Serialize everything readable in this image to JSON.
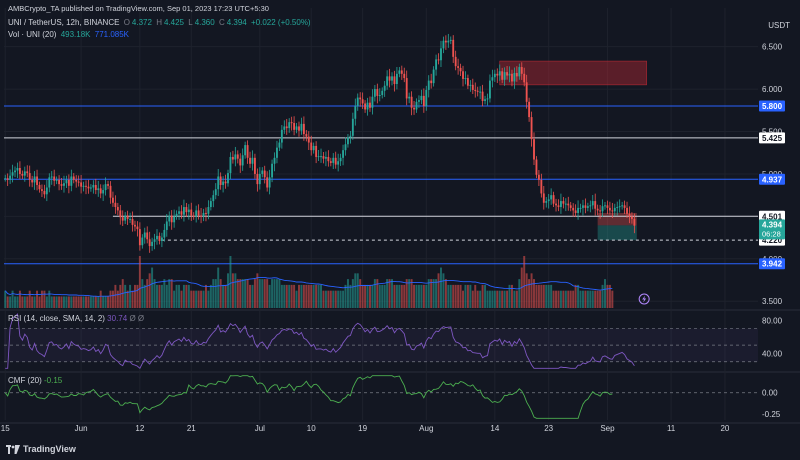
{
  "header": {
    "published": "AMBCrypto_TA published on TradingView.com, Sep 01, 2023 17:23 UTC+5:30"
  },
  "legend": {
    "symbol": "UNI / TetherUS, 12h, BINANCE",
    "o_label": "O",
    "o_value": "4.372",
    "h_label": "H",
    "h_value": "4.425",
    "l_label": "L",
    "l_value": "4.360",
    "c_label": "C",
    "c_value": "4.394",
    "change": "+0.022 (+0.50%)",
    "vol_label": "Vol · UNI (20)",
    "vol_value": "493.18K",
    "vol_ma": "771.085K"
  },
  "currency": "USDT",
  "rsi": {
    "label": "RSI (14, close, SMA, 14, 2)",
    "value": "30.74",
    "extra": "Ø Ø"
  },
  "cmf": {
    "label": "CMF (20)",
    "value": "-0.15"
  },
  "brand": "TradingView",
  "colors": {
    "bg": "#131722",
    "up": "#26a69a",
    "down": "#ef5350",
    "blue_line": "#2962ff",
    "white_line": "#d1d4dc",
    "rsi": "#7e57c2",
    "cmf": "#4caf50",
    "grid": "#1e222d",
    "text": "#d1d4dc",
    "muted": "#787b86"
  },
  "chart_data": [
    {
      "type": "candlestick",
      "title": "UNI / TetherUS, 12h, BINANCE",
      "ylim": [
        3.42,
        6.72
      ],
      "y_ticks": [
        "6.500",
        "6.000",
        "5.500",
        "5.000",
        "4.500",
        "4.000",
        "3.500"
      ],
      "x_ticks": [
        "15",
        "Jun",
        "12",
        "21",
        "Jul",
        "10",
        "19",
        "Aug",
        "14",
        "23",
        "Sep",
        "11",
        "20"
      ],
      "x_tick_index": [
        0,
        31,
        55,
        76,
        104,
        125,
        146,
        172,
        200,
        222,
        246,
        272,
        294
      ],
      "hlines": [
        {
          "value": 5.8,
          "label": "5.800",
          "color": "blue"
        },
        {
          "value": 5.425,
          "label": "5.425",
          "color": "white"
        },
        {
          "value": 4.937,
          "label": "4.937",
          "color": "blue"
        },
        {
          "value": 4.501,
          "label": "4.501",
          "color": "white",
          "start_index": 44
        },
        {
          "value": 4.22,
          "label": "4.220",
          "color": "dashed",
          "start_index": 64
        },
        {
          "value": 3.942,
          "label": "3.942",
          "color": "blue"
        }
      ],
      "last_price": {
        "value": "4.394",
        "countdown": "06:28"
      },
      "supply_zone": {
        "from_index": 202,
        "to_index": 262,
        "low": 6.05,
        "high": 6.33
      },
      "position": {
        "from_index": 242,
        "to_index": 258,
        "entry": 4.394,
        "stop": 4.54,
        "target": 4.22
      },
      "closes": [
        4.95,
        4.93,
        4.98,
        5.02,
        5.04,
        5.07,
        5.0,
        4.98,
        5.03,
        5.01,
        4.93,
        4.9,
        4.97,
        4.87,
        4.82,
        4.8,
        4.76,
        4.84,
        4.96,
        4.97,
        4.92,
        4.93,
        4.88,
        4.86,
        4.89,
        4.93,
        4.86,
        4.97,
        4.93,
        4.91,
        4.9,
        4.85,
        4.86,
        4.85,
        4.83,
        4.84,
        4.87,
        4.81,
        4.83,
        4.77,
        4.81,
        4.88,
        4.86,
        4.72,
        4.66,
        4.61,
        4.57,
        4.49,
        4.45,
        4.51,
        4.47,
        4.47,
        4.4,
        4.38,
        4.35,
        4.16,
        4.25,
        4.31,
        4.23,
        4.15,
        4.2,
        4.23,
        4.27,
        4.21,
        4.25,
        4.34,
        4.44,
        4.51,
        4.43,
        4.5,
        4.53,
        4.56,
        4.52,
        4.61,
        4.55,
        4.58,
        4.51,
        4.5,
        4.57,
        4.51,
        4.5,
        4.54,
        4.53,
        4.61,
        4.68,
        4.75,
        4.82,
        4.97,
        4.87,
        4.91,
        4.89,
        5.01,
        5.2,
        5.17,
        5.23,
        5.18,
        5.1,
        5.22,
        5.34,
        5.19,
        5.12,
        5.19,
        5.0,
        4.88,
        5.0,
        5.04,
        4.96,
        4.84,
        4.96,
        5.12,
        5.19,
        5.31,
        5.37,
        5.52,
        5.56,
        5.54,
        5.61,
        5.6,
        5.52,
        5.56,
        5.51,
        5.59,
        5.47,
        5.44,
        5.37,
        5.28,
        5.33,
        5.2,
        5.21,
        5.21,
        5.18,
        5.2,
        5.15,
        5.13,
        5.19,
        5.11,
        5.15,
        5.19,
        5.28,
        5.35,
        5.43,
        5.45,
        5.65,
        5.8,
        5.9,
        5.88,
        5.83,
        5.76,
        5.84,
        5.78,
        5.91,
        6.0,
        5.92,
        5.93,
        5.98,
        6.04,
        6.15,
        6.1,
        6.15,
        6.06,
        6.18,
        6.22,
        6.18,
        6.13,
        5.89,
        5.91,
        5.78,
        5.76,
        5.85,
        5.87,
        5.92,
        5.8,
        5.99,
        6.1,
        6.07,
        6.23,
        6.35,
        6.34,
        6.48,
        6.57,
        6.55,
        6.57,
        6.58,
        6.38,
        6.27,
        6.25,
        6.21,
        6.12,
        6.13,
        6.04,
        6.05,
        5.99,
        5.98,
        5.97,
        5.97,
        5.86,
        5.88,
        5.89,
        6.1,
        6.14,
        6.18,
        6.16,
        6.21,
        6.11,
        6.2,
        6.16,
        6.18,
        6.09,
        6.19,
        6.15,
        6.26,
        6.18,
        6.08,
        5.85,
        5.67,
        5.41,
        5.17,
        4.99,
        4.93,
        4.77,
        4.66,
        4.68,
        4.7,
        4.75,
        4.65,
        4.63,
        4.61,
        4.68,
        4.65,
        4.65,
        4.63,
        4.6,
        4.57,
        4.54,
        4.6,
        4.6,
        4.63,
        4.6,
        4.62,
        4.63,
        4.68,
        4.59,
        4.57,
        4.56,
        4.62,
        4.63,
        4.6,
        4.57,
        4.56,
        4.6,
        4.61,
        4.62,
        4.63,
        4.6,
        4.53,
        4.5,
        4.47,
        4.39
      ],
      "opens": [
        4.95,
        4.95,
        4.93,
        4.98,
        5.02,
        5.04,
        5.07,
        5.0,
        4.98,
        5.03,
        5.01,
        4.93,
        4.9,
        4.97,
        4.87,
        4.82,
        4.8,
        4.76,
        4.84,
        4.96,
        4.97,
        4.92,
        4.93,
        4.88,
        4.86,
        4.89,
        4.93,
        4.86,
        4.97,
        4.93,
        4.91,
        4.9,
        4.85,
        4.86,
        4.85,
        4.83,
        4.84,
        4.87,
        4.81,
        4.83,
        4.77,
        4.81,
        4.88,
        4.86,
        4.72,
        4.66,
        4.61,
        4.57,
        4.49,
        4.45,
        4.51,
        4.47,
        4.47,
        4.4,
        4.38,
        4.35,
        4.16,
        4.25,
        4.31,
        4.23,
        4.15,
        4.2,
        4.23,
        4.27,
        4.21,
        4.25,
        4.34,
        4.44,
        4.51,
        4.43,
        4.5,
        4.53,
        4.56,
        4.52,
        4.61,
        4.55,
        4.58,
        4.51,
        4.5,
        4.57,
        4.51,
        4.5,
        4.54,
        4.53,
        4.61,
        4.68,
        4.75,
        4.82,
        4.97,
        4.87,
        4.91,
        4.89,
        5.01,
        5.2,
        5.17,
        5.23,
        5.18,
        5.1,
        5.22,
        5.34,
        5.19,
        5.12,
        5.19,
        5.0,
        4.88,
        5.0,
        5.04,
        4.96,
        4.84,
        4.96,
        5.12,
        5.19,
        5.31,
        5.37,
        5.52,
        5.56,
        5.54,
        5.61,
        5.6,
        5.52,
        5.56,
        5.51,
        5.59,
        5.47,
        5.44,
        5.37,
        5.28,
        5.33,
        5.2,
        5.21,
        5.21,
        5.18,
        5.2,
        5.15,
        5.13,
        5.19,
        5.11,
        5.15,
        5.19,
        5.28,
        5.35,
        5.43,
        5.45,
        5.65,
        5.8,
        5.9,
        5.88,
        5.83,
        5.76,
        5.84,
        5.78,
        5.91,
        6.0,
        5.92,
        5.93,
        5.98,
        6.04,
        6.15,
        6.1,
        6.15,
        6.06,
        6.18,
        6.22,
        6.18,
        6.13,
        5.89,
        5.91,
        5.78,
        5.76,
        5.85,
        5.87,
        5.92,
        5.8,
        5.99,
        6.1,
        6.07,
        6.23,
        6.35,
        6.34,
        6.48,
        6.57,
        6.55,
        6.57,
        6.58,
        6.38,
        6.27,
        6.25,
        6.21,
        6.12,
        6.13,
        6.04,
        6.05,
        5.99,
        5.98,
        5.97,
        5.97,
        5.86,
        5.88,
        5.89,
        6.1,
        6.14,
        6.18,
        6.16,
        6.21,
        6.11,
        6.2,
        6.16,
        6.18,
        6.09,
        6.19,
        6.15,
        6.26,
        6.18,
        6.08,
        5.85,
        5.67,
        5.41,
        5.17,
        4.99,
        4.93,
        4.77,
        4.66,
        4.68,
        4.7,
        4.75,
        4.65,
        4.63,
        4.61,
        4.68,
        4.65,
        4.65,
        4.63,
        4.6,
        4.57,
        4.54,
        4.6,
        4.6,
        4.63,
        4.6,
        4.62,
        4.63,
        4.68,
        4.59,
        4.57,
        4.56,
        4.62,
        4.63,
        4.6,
        4.57,
        4.56,
        4.6,
        4.61,
        4.62,
        4.63,
        4.6,
        4.53,
        4.5,
        4.47
      ],
      "volumes": [
        3,
        2,
        2,
        3,
        2,
        2,
        3,
        2,
        2,
        2,
        3,
        2,
        2,
        3,
        2,
        3,
        3,
        2,
        3,
        2,
        2,
        2,
        2,
        2,
        2,
        2,
        2,
        2,
        2,
        2,
        2,
        2,
        2,
        2,
        2,
        2,
        2,
        2,
        2,
        3,
        2,
        2,
        2,
        3,
        3,
        4,
        3,
        4,
        5,
        4,
        3,
        4,
        3,
        4,
        4,
        9,
        5,
        4,
        5,
        6,
        7,
        5,
        4,
        4,
        4,
        5,
        4,
        5,
        5,
        3,
        4,
        4,
        3,
        4,
        4,
        4,
        3,
        3,
        3,
        3,
        3,
        3,
        4,
        3,
        4,
        5,
        5,
        7,
        5,
        4,
        4,
        6,
        9,
        6,
        6,
        5,
        5,
        5,
        5,
        5,
        4,
        4,
        5,
        6,
        5,
        5,
        5,
        5,
        4,
        5,
        5,
        5,
        5,
        4,
        4,
        4,
        4,
        4,
        4,
        3,
        4,
        4,
        4,
        4,
        4,
        4,
        4,
        4,
        4,
        4,
        3,
        3,
        3,
        3,
        3,
        3,
        3,
        3,
        3,
        4,
        5,
        4,
        5,
        6,
        6,
        5,
        4,
        4,
        4,
        4,
        4,
        5,
        5,
        4,
        4,
        4,
        5,
        5,
        5,
        4,
        4,
        4,
        4,
        4,
        5,
        5,
        5,
        4,
        4,
        4,
        4,
        4,
        4,
        5,
        5,
        5,
        5,
        6,
        7,
        6,
        5,
        4,
        4,
        4,
        4,
        4,
        4,
        3,
        4,
        4,
        4,
        3,
        4,
        3,
        3,
        4,
        4,
        3,
        3,
        3,
        3,
        3,
        3,
        3,
        3,
        3,
        4,
        4,
        3,
        3,
        5,
        7,
        9,
        6,
        5,
        6,
        5,
        4,
        4,
        4,
        4,
        4,
        4,
        4,
        3,
        3,
        3,
        3,
        3,
        3,
        3,
        3,
        3,
        4,
        4,
        3,
        3,
        3,
        3,
        3,
        3,
        3,
        3,
        3,
        4,
        5,
        4,
        4,
        3
      ],
      "volume_note": "Vol · UNI (20) 493.18K / 771.085K"
    },
    {
      "type": "line",
      "title": "RSI (14, close, SMA, 14, 2)",
      "y_ticks": [
        "80.00",
        "40.00"
      ],
      "ylim": [
        20,
        90
      ],
      "bands": [
        30,
        50,
        70
      ],
      "last": 30.74
    },
    {
      "type": "line",
      "title": "CMF (20)",
      "y_ticks": [
        "0.00",
        "-0.25"
      ],
      "ylim": [
        -0.32,
        0.22
      ],
      "zero_line": 0,
      "last": -0.15
    }
  ]
}
